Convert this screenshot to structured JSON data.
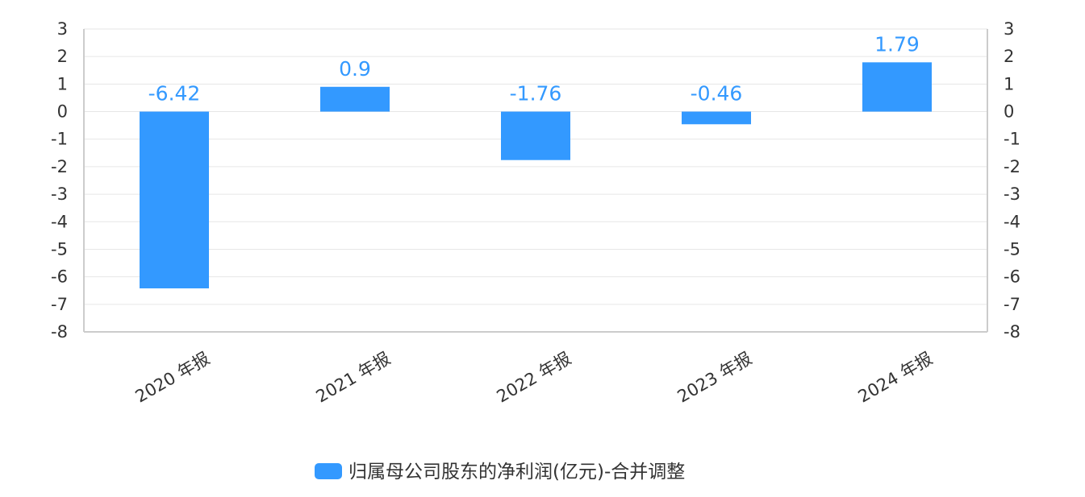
{
  "chart_data": {
    "type": "bar",
    "categories": [
      "2020 年报",
      "2021 年报",
      "2022 年报",
      "2023 年报",
      "2024 年报"
    ],
    "series": [
      {
        "name": "归属母公司股东的净利润(亿元)-合并调整",
        "values": [
          -6.42,
          0.9,
          -1.76,
          -0.46,
          1.79
        ],
        "color": "#3399ff"
      }
    ],
    "data_labels": [
      "-6.42",
      "0.9",
      "-1.76",
      "-0.46",
      "1.79"
    ],
    "ylim": [
      -8,
      3
    ],
    "yticks": [
      "3",
      "2",
      "1",
      "0",
      "-1",
      "-2",
      "-3",
      "-4",
      "-5",
      "-6",
      "-7",
      "-8"
    ],
    "y_axis_right": true,
    "grid": true,
    "legend_position": "bottom-center"
  }
}
